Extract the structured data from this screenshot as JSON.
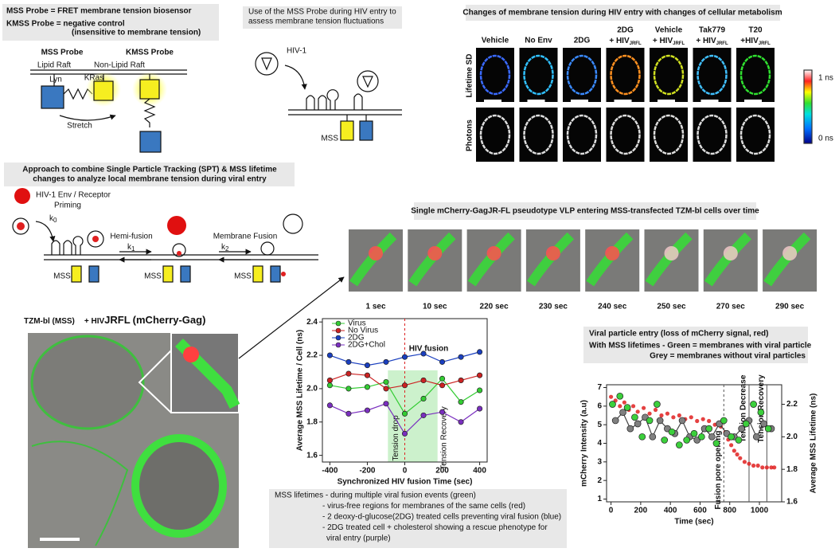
{
  "probe": {
    "lines": [
      "MSS Probe = FRET membrane tension biosensor",
      "KMSS Probe = negative control",
      "(insensitive to membrane tension)"
    ],
    "labels": [
      "MSS Probe",
      "KMSS Probe",
      "Lipid Raft",
      "Non-Lipid Raft",
      "Lyn",
      "KRas",
      "Stretch"
    ]
  },
  "use": {
    "lines": [
      "Use of the MSS Probe during HIV entry to",
      "assess membrane tension fluctuations"
    ],
    "labels": [
      "HIV-1",
      "MSS"
    ]
  },
  "metabolism": {
    "title": "Changes of membrane tension during HIV entry with changes of cellular metabolism",
    "columns": [
      {
        "top": "Vehicle"
      },
      {
        "top": "No Env"
      },
      {
        "top": "2DG"
      },
      {
        "top": "2DG",
        "main": "+ HIV",
        "sub": "JRFL"
      },
      {
        "top": "Vehicle",
        "main": "+ HIV",
        "sub": "JRFL"
      },
      {
        "top": "Tak779",
        "main": "+ HIV",
        "sub": "JRFL"
      },
      {
        "top": "T20",
        "main": "+HIV",
        "sub": "JRFL"
      }
    ],
    "rows": [
      "Lifetime SD",
      "Photons"
    ],
    "scale": [
      "1 ns",
      "0 ns"
    ]
  },
  "approach": {
    "lines": [
      "Approach to combine Single Particle Tracking (SPT) & MSS lifetime",
      "changes to analyze local membrane tension during viral entry"
    ],
    "labels": [
      "HIV-1 Env / Receptor",
      "Priming",
      "Hemi-fusion",
      "Membrane Fusion",
      "MSS"
    ],
    "rates": [
      "k",
      "0",
      "k",
      "1",
      "k",
      "2"
    ]
  },
  "micrograph": {
    "title": [
      "TZM-bl (MSS)",
      "+ HIV",
      "JRFL",
      "(mCherry-Gag)"
    ]
  },
  "timelapse": {
    "title": "Single mCherry-GagJR-FL pseudotype VLP entering MSS-transfected TZM-bl cells over time",
    "times": [
      "1 sec",
      "10 sec",
      "220 sec",
      "230 sec",
      "240 sec",
      "250 sec",
      "270 sec",
      "290 sec"
    ]
  },
  "notes1": {
    "lines": [
      "MSS lifetimes - during multiple viral fusion events (green)",
      "- virus-free regions for membranes of the same cells (red)",
      "- 2 deoxy-d-glucose(2DG) treated cells preventing viral fusion (blue)",
      "- 2DG treated cell + cholesterol showing a rescue phenotype for",
      "viral entry (purple)"
    ]
  },
  "notes2": {
    "lines": [
      "Viral particle entry (loss of mCherry signal, red)",
      "With MSS lifetimes - Green = membranes with viral particle",
      "Grey = membranes without viral particles"
    ]
  },
  "chart_data": [
    {
      "type": "line",
      "x_label": "Synchronized HIV fusion Time (sec)",
      "y_label": "Average MSS Lifetime / Cell (ns)",
      "x": [
        -400,
        -300,
        -200,
        -100,
        0,
        100,
        200,
        300,
        400
      ],
      "series": [
        {
          "name": "Virus",
          "color": "#33cc33",
          "values": [
            2.02,
            2.0,
            2.01,
            2.04,
            1.85,
            1.94,
            2.06,
            1.92,
            1.99
          ]
        },
        {
          "name": "No Virus",
          "color": "#cc2222",
          "values": [
            2.05,
            2.09,
            2.08,
            2.0,
            2.02,
            2.05,
            2.02,
            2.05,
            2.08
          ]
        },
        {
          "name": "2DG",
          "color": "#1a3fbf",
          "values": [
            2.2,
            2.16,
            2.14,
            2.16,
            2.19,
            2.21,
            2.16,
            2.19,
            2.22
          ]
        },
        {
          "name": "2DG+Chol",
          "color": "#7a2fbf",
          "values": [
            1.9,
            1.85,
            1.87,
            1.91,
            1.73,
            1.84,
            1.86,
            1.8,
            1.88
          ]
        }
      ],
      "xlim": [
        -440,
        440
      ],
      "ylim": [
        1.56,
        2.42
      ],
      "xticks": [
        -400,
        -200,
        0,
        200,
        400
      ],
      "yticks": [
        1.6,
        1.8,
        {
          "value": 2,
          "label": "2.0"
        },
        2.2,
        2.4
      ],
      "events": [
        {
          "x": 0,
          "label": "HIV fusion",
          "color": "#dd2222",
          "dashed": true
        }
      ],
      "highlight": {
        "x": [
          -90,
          175
        ],
        "y": 2.11,
        "labels": [
          "Tension drop",
          "Tension Recovery"
        ]
      },
      "legend": "top-left"
    },
    {
      "type": "scatter",
      "x_label": "Time (sec)",
      "y_label": "mCherry Intensity (a.u)",
      "y2_label": "Average MSS Lifetime (ns)",
      "series": [
        {
          "color": "#e02020",
          "x": [
            0,
            30,
            60,
            90,
            120,
            150,
            180,
            220,
            260,
            300,
            340,
            380,
            420,
            460,
            500,
            540,
            580,
            620,
            660,
            700,
            740,
            770,
            790,
            810,
            830,
            850,
            870,
            900,
            930,
            960,
            990,
            1020,
            1050,
            1080,
            1100
          ],
          "values": [
            6.5,
            6.3,
            6.0,
            6.2,
            5.8,
            6.0,
            5.7,
            5.9,
            5.6,
            5.8,
            5.5,
            5.6,
            5.4,
            5.5,
            5.3,
            5.4,
            5.2,
            5.3,
            5.2,
            5.0,
            4.9,
            4.6,
            4.2,
            3.9,
            3.6,
            3.4,
            3.2,
            3.0,
            2.9,
            2.8,
            2.8,
            2.7,
            2.7,
            2.7,
            2.7
          ]
        },
        {
          "color": "#808080",
          "axis": "y2",
          "line": true,
          "x": [
            30,
            80,
            130,
            180,
            230,
            280,
            330,
            380,
            430,
            480,
            530,
            580,
            630,
            680,
            730,
            780,
            830,
            880,
            930,
            980,
            1030,
            1080
          ],
          "values": [
            2.1,
            2.15,
            2.05,
            2.08,
            2.12,
            2.0,
            2.1,
            2.05,
            2.02,
            2.1,
            2.0,
            1.98,
            2.05,
            2.0,
            2.08,
            2.02,
            2.0,
            2.05,
            2.1,
            2.0,
            2.08,
            2.05
          ]
        },
        {
          "color": "#3ccf3c",
          "axis": "y2",
          "x": [
            10,
            60,
            110,
            160,
            210,
            260,
            310,
            360,
            410,
            460,
            510,
            560,
            610,
            660,
            710,
            760,
            810,
            860,
            910,
            960,
            1010,
            1060
          ],
          "values": [
            2.2,
            2.25,
            2.18,
            2.12,
            2.0,
            2.1,
            2.2,
            1.98,
            2.03,
            1.95,
            1.98,
            2.02,
            2.0,
            2.05,
            1.96,
            2.1,
            2.0,
            1.98,
            2.08,
            2.2,
            2.15,
            2.05
          ]
        }
      ],
      "xlim": [
        -30,
        1150
      ],
      "ylim": [
        0.85,
        7.15
      ],
      "y2lim": [
        1.6,
        2.32
      ],
      "xticks": [
        0,
        200,
        400,
        600,
        800,
        1000
      ],
      "yticks": [
        1,
        2,
        3,
        4,
        5,
        6,
        7
      ],
      "y2ticks": [
        1.6,
        1.8,
        {
          "value": 2,
          "label": "2.0"
        },
        2.2
      ],
      "events": [
        {
          "x": 760,
          "label": "Fusion pore opening",
          "color": "#e02020",
          "dashed": true
        },
        {
          "x": 930,
          "label": "Tension Decrease",
          "color": "#2a9a4a"
        },
        {
          "x": 1050,
          "label": "Tension Recovery",
          "color": "#2a9a4a"
        }
      ]
    }
  ]
}
